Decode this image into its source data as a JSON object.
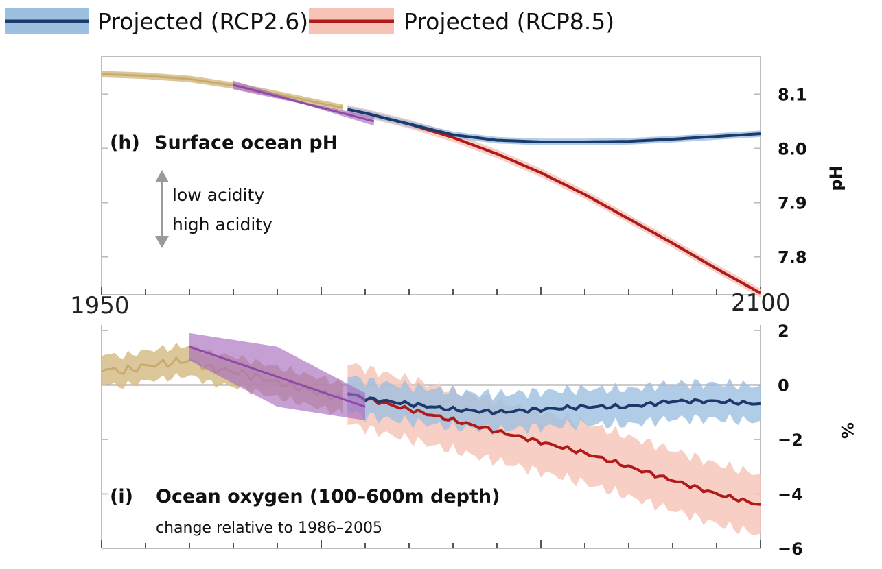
{
  "legend": [
    {
      "label": "Projected (RCP2.6)",
      "line_color": "#1b3a6b",
      "band_color": "#9dbfe0"
    },
    {
      "label": "Projected (RCP8.5)",
      "line_color": "#b11a1a",
      "band_color": "#f6c3b6"
    }
  ],
  "colors": {
    "observed": "#c8ab6d",
    "observed_band": "#d6bd88",
    "trend": "#8f4aa8",
    "trend_band": "#a86bbf",
    "axis": "#bdbdbd",
    "zero_line": "#999999",
    "arrow": "#9a9a9a"
  },
  "chart_data": [
    {
      "type": "line",
      "panel_id": "(h)",
      "title": "Surface ocean pH",
      "ylabel": "pH",
      "ylim": [
        7.73,
        8.17
      ],
      "yticks": [
        "8.1",
        "8.0",
        "7.9",
        "7.8"
      ],
      "ytick_values": [
        8.1,
        8.0,
        7.9,
        7.8
      ],
      "xlim": [
        1950,
        2100
      ],
      "annotation_up": "low acidity",
      "annotation_down": "high acidity",
      "observed": {
        "x": [
          1950,
          1960,
          1970,
          1980,
          1990,
          2000,
          2005
        ],
        "y": [
          8.137,
          8.134,
          8.128,
          8.116,
          8.1,
          8.083,
          8.075
        ],
        "band": 0.006
      },
      "trend": {
        "x": [
          1980,
          2012
        ],
        "y": [
          8.117,
          8.05
        ],
        "halfwidth": [
          0.002,
          0.008
        ]
      },
      "series": [
        {
          "name": "Projected (RCP2.6)",
          "x": [
            2006,
            2010,
            2020,
            2030,
            2040,
            2050,
            2060,
            2070,
            2080,
            2090,
            2100
          ],
          "values": [
            8.072,
            8.065,
            8.045,
            8.025,
            8.015,
            8.012,
            8.012,
            8.013,
            8.017,
            8.022,
            8.027
          ],
          "band": 0.006
        },
        {
          "name": "Projected (RCP8.5)",
          "x": [
            2006,
            2010,
            2020,
            2030,
            2040,
            2050,
            2060,
            2070,
            2080,
            2090,
            2100
          ],
          "values": [
            8.072,
            8.065,
            8.045,
            8.02,
            7.99,
            7.955,
            7.915,
            7.87,
            7.825,
            7.778,
            7.733
          ],
          "band": 0.008
        }
      ]
    },
    {
      "type": "line",
      "panel_id": "(i)",
      "title": "Ocean oxygen (100–600m depth)",
      "subtitle": "change relative to 1986–2005",
      "ylabel": "%",
      "ylim": [
        -6,
        2.3
      ],
      "yticks": [
        "2",
        "0",
        "−2",
        "−4",
        "−6"
      ],
      "ytick_values": [
        2,
        0,
        -2,
        -4,
        -6
      ],
      "xlim": [
        1950,
        2100
      ],
      "observed": {
        "x": [
          1950,
          1955,
          1960,
          1965,
          1970,
          1975,
          1980,
          1985,
          1990,
          1995,
          2000,
          2005
        ],
        "y": [
          0.6,
          0.5,
          0.7,
          0.8,
          0.9,
          0.6,
          0.5,
          0.3,
          0.1,
          -0.1,
          -0.3,
          -0.5
        ],
        "band": 0.55
      },
      "trend": {
        "x": [
          1970,
          2010
        ],
        "y": [
          1.4,
          -0.8
        ],
        "halfwidth": [
          1.1,
          0.5
        ]
      },
      "series": [
        {
          "name": "Projected (RCP2.6)",
          "x": [
            2006,
            2010,
            2020,
            2030,
            2040,
            2050,
            2060,
            2070,
            2080,
            2090,
            2100
          ],
          "values": [
            -0.3,
            -0.5,
            -0.7,
            -0.9,
            -1.0,
            -0.9,
            -0.8,
            -0.8,
            -0.6,
            -0.6,
            -0.7
          ],
          "band": 0.65
        },
        {
          "name": "Projected (RCP8.5)",
          "x": [
            2006,
            2010,
            2020,
            2030,
            2040,
            2050,
            2060,
            2070,
            2080,
            2090,
            2100
          ],
          "values": [
            -0.3,
            -0.5,
            -0.9,
            -1.3,
            -1.7,
            -2.1,
            -2.5,
            -3.0,
            -3.5,
            -4.0,
            -4.4
          ],
          "band": 1.1
        }
      ]
    }
  ],
  "x_axis": {
    "start_label": "1950",
    "end_label": "2100"
  }
}
